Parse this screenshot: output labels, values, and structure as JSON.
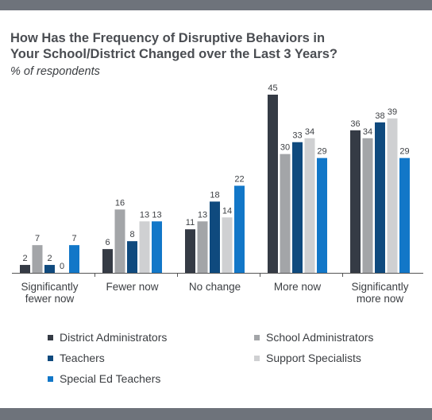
{
  "title_line1": "How Has the Frequency of Disruptive Behaviors in",
  "title_line2": "Your School/District Changed over the Last 3 Years?",
  "subtitle": "% of respondents",
  "colors": {
    "band": "#6e737b",
    "axis": "#555555",
    "label_text": "#3b3e42"
  },
  "chart_data": {
    "type": "bar",
    "title": "How Has the Frequency of Disruptive Behaviors in Your School/District Changed over the Last 3 Years?",
    "subtitle": "% of respondents",
    "categories": [
      [
        "Significantly",
        "fewer now"
      ],
      [
        "Fewer now"
      ],
      [
        "No change"
      ],
      [
        "More now"
      ],
      [
        "Significantly",
        "more now"
      ]
    ],
    "series": [
      {
        "name": "District Administrators",
        "color": "#353b45",
        "values": [
          2,
          6,
          11,
          45,
          36
        ]
      },
      {
        "name": "School Administrators",
        "color": "#a3a5a8",
        "values": [
          7,
          16,
          13,
          30,
          34
        ]
      },
      {
        "name": "Teachers",
        "color": "#0f4a7e",
        "values": [
          2,
          8,
          18,
          33,
          38
        ]
      },
      {
        "name": "Support Specialists",
        "color": "#cfd0d2",
        "values": [
          0,
          13,
          14,
          34,
          39
        ]
      },
      {
        "name": "Special Ed Teachers",
        "color": "#1277c8",
        "values": [
          7,
          13,
          22,
          29,
          29
        ]
      }
    ],
    "ylim": [
      0,
      45
    ],
    "grid": false,
    "data_labels": true,
    "legend_position": "bottom"
  }
}
